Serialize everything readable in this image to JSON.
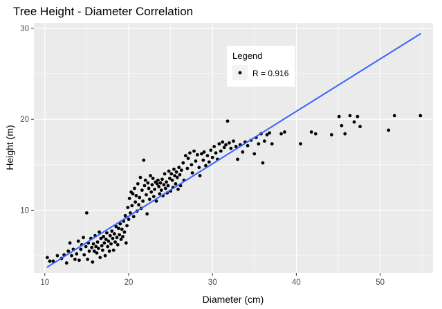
{
  "chart_data": {
    "type": "scatter",
    "title": "Tree Height - Diameter Correlation",
    "xlabel": "Diameter (cm)",
    "ylabel": "Height (m)",
    "xlim": [
      8.7,
      56.3
    ],
    "ylim": [
      3.1,
      30.6
    ],
    "x_ticks": [
      10,
      20,
      30,
      40,
      50
    ],
    "y_ticks": [
      10,
      20,
      30
    ],
    "grid": true,
    "legend": {
      "title": "Legend",
      "placement": "top-center-right",
      "entries": [
        "R = 0.916"
      ]
    },
    "colors": {
      "panel": "#ebebeb",
      "grid": "#ffffff",
      "points": "#000000",
      "fit_line": "#3366ff",
      "legend_key": "#f2f2f2"
    },
    "series": [
      {
        "kind": "points",
        "points": [
          [
            10.3,
            4.8
          ],
          [
            10.6,
            4.4
          ],
          [
            11.0,
            4.4
          ],
          [
            11.5,
            5.0
          ],
          [
            12.0,
            4.7
          ],
          [
            12.3,
            5.1
          ],
          [
            12.6,
            4.2
          ],
          [
            12.8,
            5.5
          ],
          [
            13.0,
            6.4
          ],
          [
            13.2,
            5.0
          ],
          [
            13.4,
            5.7
          ],
          [
            13.6,
            4.6
          ],
          [
            13.8,
            5.2
          ],
          [
            14.0,
            6.6
          ],
          [
            14.1,
            4.5
          ],
          [
            14.3,
            5.7
          ],
          [
            14.4,
            6.2
          ],
          [
            14.6,
            7.0
          ],
          [
            14.7,
            5.1
          ],
          [
            14.9,
            6.0
          ],
          [
            15.0,
            9.7
          ],
          [
            15.1,
            4.6
          ],
          [
            15.2,
            6.4
          ],
          [
            15.3,
            5.5
          ],
          [
            15.5,
            6.9
          ],
          [
            15.6,
            5.9
          ],
          [
            15.7,
            4.3
          ],
          [
            15.8,
            6.3
          ],
          [
            15.9,
            5.5
          ],
          [
            16.0,
            7.2
          ],
          [
            16.1,
            6.0
          ],
          [
            16.2,
            5.3
          ],
          [
            16.3,
            6.5
          ],
          [
            16.4,
            5.8
          ],
          [
            16.5,
            7.6
          ],
          [
            16.6,
            4.8
          ],
          [
            16.7,
            6.9
          ],
          [
            16.8,
            6.1
          ],
          [
            16.9,
            5.6
          ],
          [
            17.0,
            7.1
          ],
          [
            17.1,
            6.4
          ],
          [
            17.2,
            5.0
          ],
          [
            17.3,
            6.8
          ],
          [
            17.4,
            7.5
          ],
          [
            17.5,
            6.0
          ],
          [
            17.6,
            6.6
          ],
          [
            17.7,
            5.5
          ],
          [
            17.8,
            7.2
          ],
          [
            17.9,
            6.3
          ],
          [
            18.0,
            7.7
          ],
          [
            18.1,
            6.9
          ],
          [
            18.2,
            5.6
          ],
          [
            18.3,
            7.4
          ],
          [
            18.4,
            6.5
          ],
          [
            18.5,
            8.2
          ],
          [
            18.6,
            7.0
          ],
          [
            18.7,
            6.2
          ],
          [
            18.8,
            8.0
          ],
          [
            18.9,
            7.3
          ],
          [
            19.0,
            8.5
          ],
          [
            19.1,
            6.8
          ],
          [
            19.2,
            7.9
          ],
          [
            19.3,
            7.1
          ],
          [
            19.4,
            8.8
          ],
          [
            19.5,
            7.6
          ],
          [
            19.6,
            9.4
          ],
          [
            19.7,
            6.4
          ],
          [
            19.8,
            8.3
          ],
          [
            19.9,
            10.3
          ],
          [
            20.0,
            9.0
          ],
          [
            20.1,
            11.3
          ],
          [
            20.2,
            9.7
          ],
          [
            20.3,
            12.0
          ],
          [
            20.4,
            10.5
          ],
          [
            20.5,
            11.8
          ],
          [
            20.6,
            9.3
          ],
          [
            20.7,
            12.4
          ],
          [
            20.8,
            10.9
          ],
          [
            20.9,
            11.6
          ],
          [
            21.0,
            9.9
          ],
          [
            21.1,
            12.9
          ],
          [
            21.2,
            10.6
          ],
          [
            21.3,
            11.4
          ],
          [
            21.4,
            13.6
          ],
          [
            21.5,
            10.2
          ],
          [
            21.6,
            12.2
          ],
          [
            21.7,
            11.0
          ],
          [
            21.8,
            15.5
          ],
          [
            21.9,
            12.7
          ],
          [
            22.0,
            13.3
          ],
          [
            22.1,
            11.7
          ],
          [
            22.2,
            9.6
          ],
          [
            22.3,
            13.0
          ],
          [
            22.4,
            12.4
          ],
          [
            22.5,
            11.2
          ],
          [
            22.6,
            13.8
          ],
          [
            22.7,
            12.0
          ],
          [
            22.8,
            12.8
          ],
          [
            22.9,
            13.5
          ],
          [
            23.0,
            11.5
          ],
          [
            23.1,
            12.3
          ],
          [
            23.2,
            13.1
          ],
          [
            23.3,
            11.0
          ],
          [
            23.4,
            12.9
          ],
          [
            23.5,
            13.3
          ],
          [
            23.6,
            12.6
          ],
          [
            23.7,
            11.8
          ],
          [
            23.8,
            13.0
          ],
          [
            23.9,
            12.2
          ],
          [
            24.0,
            13.4
          ],
          [
            24.1,
            11.6
          ],
          [
            24.2,
            12.8
          ],
          [
            24.3,
            14.0
          ],
          [
            24.4,
            12.4
          ],
          [
            24.5,
            13.1
          ],
          [
            24.6,
            11.9
          ],
          [
            24.7,
            12.7
          ],
          [
            24.8,
            14.3
          ],
          [
            24.9,
            13.5
          ],
          [
            25.0,
            12.1
          ],
          [
            25.1,
            14.0
          ],
          [
            25.2,
            13.3
          ],
          [
            25.3,
            12.5
          ],
          [
            25.4,
            14.5
          ],
          [
            25.5,
            13.8
          ],
          [
            25.6,
            12.9
          ],
          [
            25.7,
            14.2
          ],
          [
            25.8,
            13.6
          ],
          [
            25.9,
            12.3
          ],
          [
            26.0,
            14.7
          ],
          [
            26.1,
            13.9
          ],
          [
            26.2,
            12.7
          ],
          [
            26.3,
            14.4
          ],
          [
            26.5,
            15.2
          ],
          [
            26.6,
            13.3
          ],
          [
            26.8,
            16.0
          ],
          [
            27.0,
            14.6
          ],
          [
            27.1,
            15.7
          ],
          [
            27.3,
            16.3
          ],
          [
            27.5,
            15.0
          ],
          [
            27.6,
            14.1
          ],
          [
            27.8,
            16.5
          ],
          [
            28.0,
            15.4
          ],
          [
            28.2,
            16.1
          ],
          [
            28.4,
            14.7
          ],
          [
            28.5,
            13.8
          ],
          [
            28.7,
            16.2
          ],
          [
            28.9,
            15.5
          ],
          [
            29.0,
            16.4
          ],
          [
            29.2,
            14.9
          ],
          [
            29.4,
            16.0
          ],
          [
            29.6,
            15.3
          ],
          [
            29.8,
            16.6
          ],
          [
            30.0,
            15.8
          ],
          [
            30.2,
            17.0
          ],
          [
            30.4,
            16.3
          ],
          [
            30.6,
            15.6
          ],
          [
            30.8,
            17.3
          ],
          [
            31.0,
            16.5
          ],
          [
            31.2,
            17.5
          ],
          [
            31.4,
            16.9
          ],
          [
            31.6,
            17.2
          ],
          [
            31.8,
            19.8
          ],
          [
            32.0,
            17.4
          ],
          [
            32.2,
            16.8
          ],
          [
            32.5,
            17.6
          ],
          [
            32.8,
            17.0
          ],
          [
            33.0,
            15.6
          ],
          [
            33.3,
            17.2
          ],
          [
            33.6,
            16.4
          ],
          [
            33.9,
            17.5
          ],
          [
            34.2,
            17.1
          ],
          [
            34.6,
            17.7
          ],
          [
            35.0,
            16.2
          ],
          [
            35.2,
            18.0
          ],
          [
            35.5,
            17.3
          ],
          [
            35.8,
            18.4
          ],
          [
            36.0,
            15.2
          ],
          [
            36.2,
            17.6
          ],
          [
            36.5,
            18.3
          ],
          [
            36.8,
            18.5
          ],
          [
            37.1,
            17.3
          ],
          [
            38.2,
            18.4
          ],
          [
            38.6,
            18.6
          ],
          [
            40.5,
            17.3
          ],
          [
            41.8,
            18.6
          ],
          [
            42.3,
            18.4
          ],
          [
            44.2,
            18.3
          ],
          [
            45.1,
            20.3
          ],
          [
            45.4,
            19.3
          ],
          [
            45.8,
            18.4
          ],
          [
            46.4,
            20.4
          ],
          [
            46.9,
            19.7
          ],
          [
            47.3,
            20.3
          ],
          [
            47.6,
            19.2
          ],
          [
            51.0,
            18.8
          ],
          [
            51.7,
            20.4
          ],
          [
            54.8,
            20.4
          ]
        ]
      },
      {
        "kind": "fit_line",
        "points": [
          [
            10.3,
            3.75
          ],
          [
            54.8,
            29.4
          ]
        ]
      }
    ]
  }
}
